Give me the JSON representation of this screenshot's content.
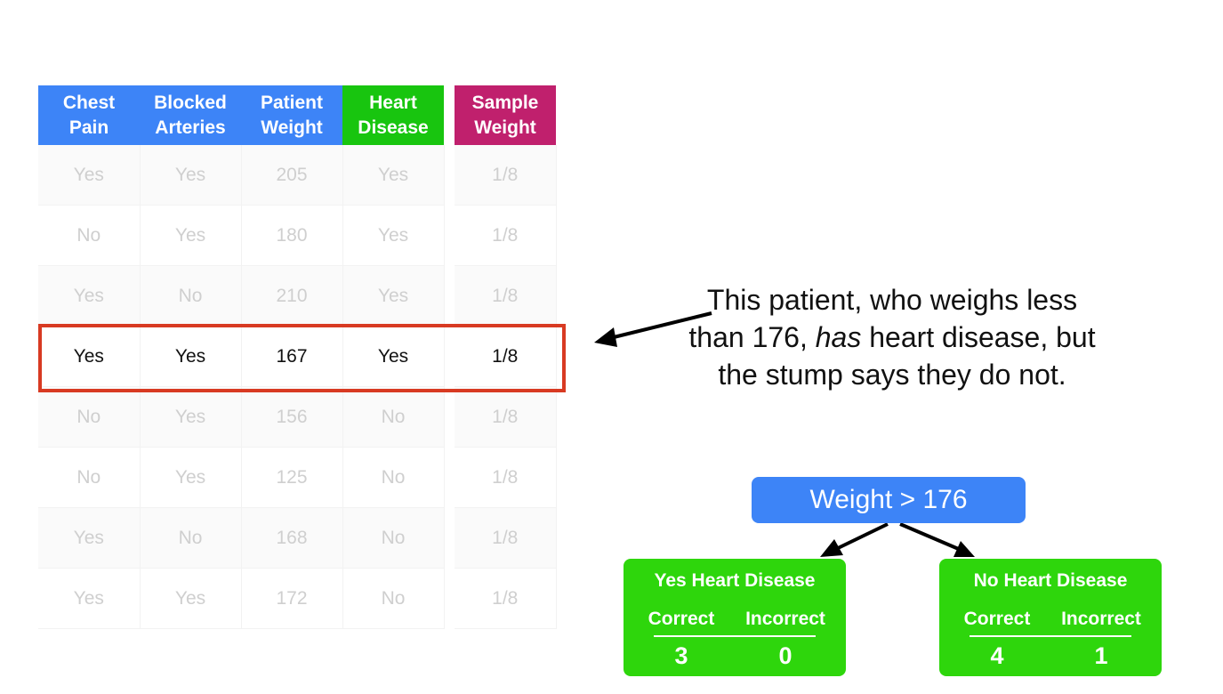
{
  "table": {
    "headers": [
      "Chest\nPain",
      "Blocked\nArteries",
      "Patient\nWeight",
      "Heart\nDisease",
      "Sample\nWeight"
    ],
    "rows": [
      [
        "Yes",
        "Yes",
        "205",
        "Yes",
        "1/8"
      ],
      [
        "No",
        "Yes",
        "180",
        "Yes",
        "1/8"
      ],
      [
        "Yes",
        "No",
        "210",
        "Yes",
        "1/8"
      ],
      [
        "Yes",
        "Yes",
        "167",
        "Yes",
        "1/8"
      ],
      [
        "No",
        "Yes",
        "156",
        "No",
        "1/8"
      ],
      [
        "No",
        "Yes",
        "125",
        "No",
        "1/8"
      ],
      [
        "Yes",
        "No",
        "168",
        "No",
        "1/8"
      ],
      [
        "Yes",
        "Yes",
        "172",
        "No",
        "1/8"
      ]
    ],
    "highlighted_row": 3
  },
  "callout": {
    "before_em": "This patient, who weighs less than 176, ",
    "em": "has",
    "after_em": " heart disease, but the stump says they do not."
  },
  "stump": {
    "root": "Weight > 176",
    "leaves": [
      {
        "title": "Yes Heart Disease",
        "col1": "Correct",
        "col2": "Incorrect",
        "val1": "3",
        "val2": "0"
      },
      {
        "title": "No Heart Disease",
        "col1": "Correct",
        "col2": "Incorrect",
        "val1": "4",
        "val2": "1"
      }
    ]
  },
  "colors": {
    "feature_header": "#3d84f7",
    "label_header": "#18c50f",
    "weight_header": "#c0206d",
    "highlight": "#d83a22",
    "leaf": "#2ed60c"
  }
}
